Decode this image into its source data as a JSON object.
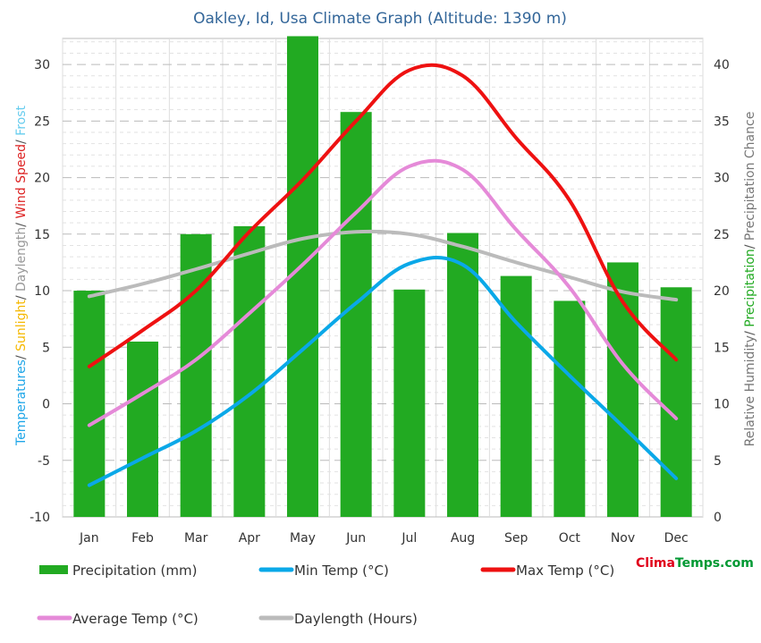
{
  "title": "Oakley, Id, Usa Climate Graph (Altitude: 1390 m)",
  "left_axis_title": [
    {
      "text": "Temperatures",
      "color": "#1fa6e8"
    },
    {
      "text": "/ ",
      "color": "#555555"
    },
    {
      "text": "Sunlight",
      "color": "#f5b800"
    },
    {
      "text": "/ ",
      "color": "#555555"
    },
    {
      "text": "Daylength",
      "color": "#999999"
    },
    {
      "text": "/ ",
      "color": "#555555"
    },
    {
      "text": "Wind Speed",
      "color": "#dd2222"
    },
    {
      "text": "/ ",
      "color": "#555555"
    },
    {
      "text": "Frost",
      "color": "#66ccee"
    }
  ],
  "right_axis_title": [
    {
      "text": "Relative Humidity",
      "color": "#777777"
    },
    {
      "text": "/ ",
      "color": "#555555"
    },
    {
      "text": "Precipitation",
      "color": "#22aa22"
    },
    {
      "text": "/ ",
      "color": "#555555"
    },
    {
      "text": "Precipitation Chance",
      "color": "#777777"
    }
  ],
  "brand": {
    "part1": "Clima",
    "part2": "Temps.com"
  },
  "chart_data": {
    "type": "bar",
    "categories": [
      "Jan",
      "Feb",
      "Mar",
      "Apr",
      "May",
      "Jun",
      "Jul",
      "Aug",
      "Sep",
      "Oct",
      "Nov",
      "Dec"
    ],
    "y_left": {
      "min": -10,
      "max": 30,
      "ticks": [
        -10,
        -5,
        0,
        5,
        10,
        15,
        20,
        25,
        30
      ]
    },
    "y_right": {
      "min": 0,
      "max": 40,
      "ticks": [
        0,
        5,
        10,
        15,
        20,
        25,
        30,
        35,
        40
      ]
    },
    "grid": true,
    "legend_position": "bottom",
    "series": [
      {
        "name": "Precipitation (mm)",
        "type": "bar",
        "axis": "right",
        "color": "#22aa22",
        "values": [
          20.0,
          15.5,
          25.0,
          25.7,
          42.5,
          35.8,
          20.1,
          25.1,
          21.3,
          19.1,
          22.5,
          20.3
        ]
      },
      {
        "name": "Min Temp (°C)",
        "type": "line",
        "axis": "left",
        "color": "#0aa8e8",
        "values": [
          -7.2,
          -4.8,
          -2.4,
          0.8,
          4.8,
          8.9,
          12.4,
          12.3,
          7.2,
          2.5,
          -2.0,
          -6.6
        ]
      },
      {
        "name": "Max Temp (°C)",
        "type": "line",
        "axis": "left",
        "color": "#ee1111",
        "values": [
          3.3,
          6.5,
          10.0,
          15.2,
          19.8,
          25.0,
          29.5,
          29.0,
          23.5,
          18.0,
          9.0,
          3.9
        ]
      },
      {
        "name": "Average Temp (°C)",
        "type": "line",
        "axis": "left",
        "color": "#e58ad8",
        "values": [
          -1.9,
          0.9,
          3.9,
          8.0,
          12.3,
          16.9,
          21.0,
          20.7,
          15.4,
          10.3,
          3.5,
          -1.3
        ]
      },
      {
        "name": "Daylength (Hours)",
        "type": "line",
        "axis": "left",
        "color": "#bbbbbb",
        "values": [
          9.5,
          10.6,
          11.9,
          13.3,
          14.6,
          15.2,
          15.0,
          13.9,
          12.5,
          11.2,
          9.9,
          9.2
        ]
      }
    ]
  }
}
